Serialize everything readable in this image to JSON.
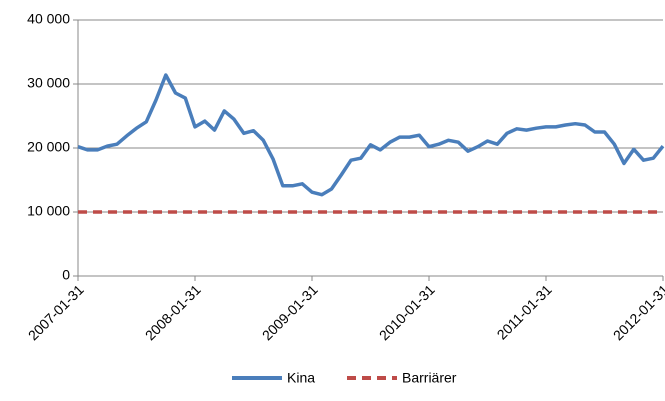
{
  "chart_data": {
    "type": "line",
    "categories": [
      "2007-01-31",
      null,
      null,
      null,
      null,
      null,
      null,
      null,
      null,
      null,
      null,
      null,
      "2008-01-31",
      null,
      null,
      null,
      null,
      null,
      null,
      null,
      null,
      null,
      null,
      null,
      "2009-01-31",
      null,
      null,
      null,
      null,
      null,
      null,
      null,
      null,
      null,
      null,
      null,
      "2010-01-31",
      null,
      null,
      null,
      null,
      null,
      null,
      null,
      null,
      null,
      null,
      null,
      "2011-01-31",
      null,
      null,
      null,
      null,
      null,
      null,
      null,
      null,
      null,
      null,
      null,
      "2012-01-31"
    ],
    "series": [
      {
        "name": "Kina",
        "color": "#4a7ebb",
        "dash": false,
        "values": [
          20200,
          19700,
          19700,
          20300,
          20600,
          21900,
          23100,
          24100,
          27500,
          31400,
          28600,
          27800,
          23300,
          24200,
          22800,
          25800,
          24500,
          22300,
          22700,
          21200,
          18300,
          14100,
          14100,
          14400,
          13100,
          12700,
          13600,
          15800,
          18100,
          18400,
          20500,
          19700,
          20900,
          21700,
          21700,
          22000,
          20200,
          20600,
          21200,
          20900,
          19500,
          20200,
          21100,
          20600,
          22300,
          23000,
          22800,
          23100,
          23300,
          23300,
          23600,
          23800,
          23600,
          22500,
          22500,
          20600,
          17600,
          19800,
          18100,
          18400,
          20300
        ]
      },
      {
        "name": "Barriärer",
        "color": "#be4b48",
        "dash": true,
        "values": [
          10000,
          10000,
          10000,
          10000,
          10000,
          10000,
          10000,
          10000,
          10000,
          10000,
          10000,
          10000,
          10000,
          10000,
          10000,
          10000,
          10000,
          10000,
          10000,
          10000,
          10000,
          10000,
          10000,
          10000,
          10000,
          10000,
          10000,
          10000,
          10000,
          10000,
          10000,
          10000,
          10000,
          10000,
          10000,
          10000,
          10000,
          10000,
          10000,
          10000,
          10000,
          10000,
          10000,
          10000,
          10000,
          10000,
          10000,
          10000,
          10000,
          10000,
          10000,
          10000,
          10000,
          10000,
          10000,
          10000,
          10000,
          10000,
          10000,
          10000,
          10000
        ]
      }
    ],
    "ylim": [
      0,
      40000
    ],
    "yticks": [
      0,
      {
        "value": 10000,
        "label": "10 000"
      },
      {
        "value": 20000,
        "label": "20 000"
      },
      {
        "value": 30000,
        "label": "30 000"
      },
      {
        "value": 40000,
        "label": "40 000"
      }
    ],
    "grid": true,
    "legend": "bottom"
  }
}
